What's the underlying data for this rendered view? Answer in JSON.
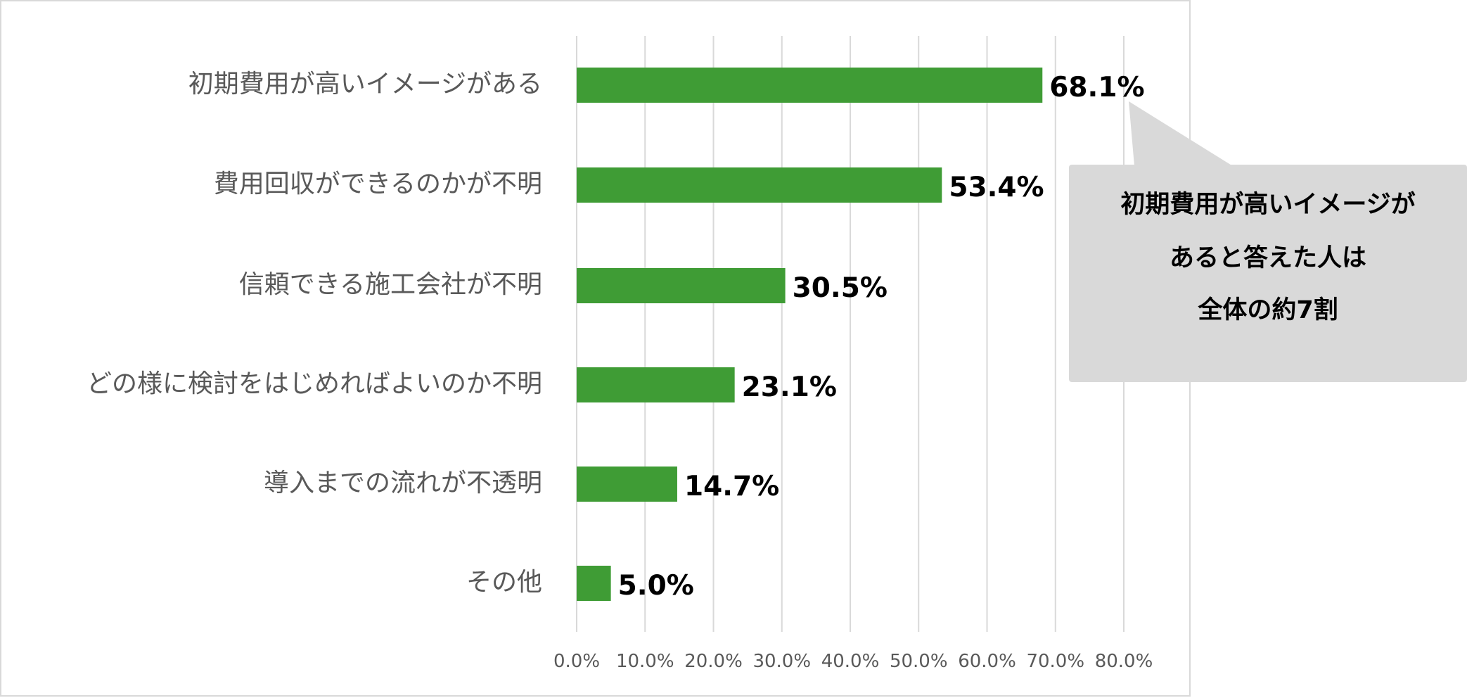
{
  "chart_data": {
    "type": "bar",
    "orientation": "horizontal",
    "categories": [
      "初期費用が高いイメージがある",
      "費用回収ができるのかが不明",
      "信頼できる施工会社が不明",
      "どの様に検討をはじめればよいのか不明",
      "導入までの流れが不透明",
      "その他"
    ],
    "values": [
      68.1,
      53.4,
      30.5,
      23.1,
      14.7,
      5.0
    ],
    "value_labels": [
      "68.1%",
      "53.4%",
      "30.5%",
      "23.1%",
      "14.7%",
      "5.0%"
    ],
    "xlim": [
      0,
      80
    ],
    "xticks": [
      0,
      10,
      20,
      30,
      40,
      50,
      60,
      70,
      80
    ],
    "xtick_labels": [
      "0.0%",
      "10.0%",
      "20.0%",
      "30.0%",
      "40.0%",
      "50.0%",
      "60.0%",
      "70.0%",
      "80.0%"
    ],
    "grid": true,
    "bar_color": "#3f9c35",
    "title": "",
    "xlabel": "",
    "ylabel": "",
    "annotation": {
      "lines": [
        "初期費用が高いイメージが",
        "あると答えた人は",
        "全体の約7割"
      ],
      "target_category": "初期費用が高いイメージがある",
      "fill": "#d9d9d9"
    }
  }
}
